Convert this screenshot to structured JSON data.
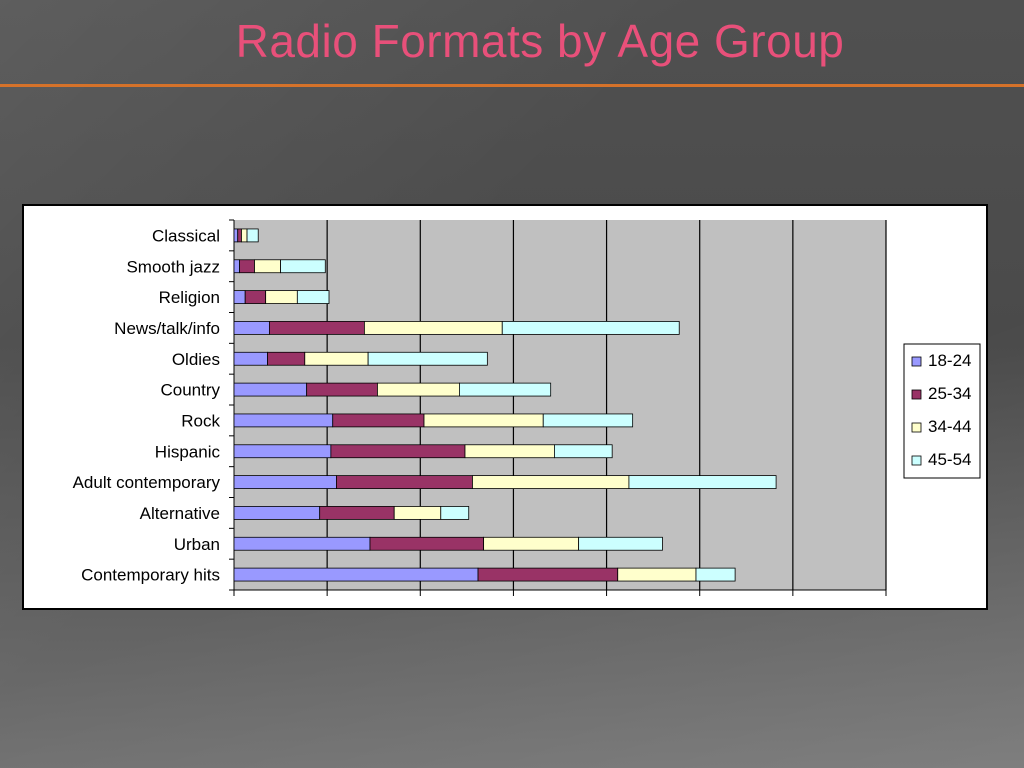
{
  "slide": {
    "title": "Radio Formats by Age Group"
  },
  "colors": {
    "title": "#e8507a",
    "rule": "#d5722a",
    "plot_bg": "#c0c0c0"
  },
  "chart_data": {
    "type": "bar",
    "orientation": "horizontal",
    "stacked": true,
    "categories": [
      "Classical",
      "Smooth jazz",
      "Religion",
      "News/talk/info",
      "Oldies",
      "Country",
      "Rock",
      "Hispanic",
      "Adult contemporary",
      "Alternative",
      "Urban",
      "Contemporary hits"
    ],
    "series": [
      {
        "name": "18-24",
        "color": "#9999ff",
        "values": [
          0.2,
          0.3,
          0.6,
          1.9,
          1.8,
          3.9,
          5.3,
          5.2,
          5.5,
          4.6,
          7.3,
          13.1
        ]
      },
      {
        "name": "25-34",
        "color": "#993366",
        "values": [
          0.2,
          0.8,
          1.1,
          5.1,
          2.0,
          3.8,
          4.9,
          7.2,
          7.3,
          4.0,
          6.1,
          7.5
        ]
      },
      {
        "name": "34-44",
        "color": "#ffffcc",
        "values": [
          0.3,
          1.4,
          1.7,
          7.4,
          3.4,
          4.4,
          6.4,
          4.8,
          8.4,
          2.5,
          5.1,
          4.2
        ]
      },
      {
        "name": "45-54",
        "color": "#ccffff",
        "values": [
          0.6,
          2.4,
          1.7,
          9.5,
          6.4,
          4.9,
          4.8,
          3.1,
          7.9,
          1.5,
          4.5,
          2.1
        ]
      }
    ],
    "xlim": [
      0,
      35
    ],
    "x_major": 5,
    "grid": "vertical",
    "legend": "right"
  }
}
